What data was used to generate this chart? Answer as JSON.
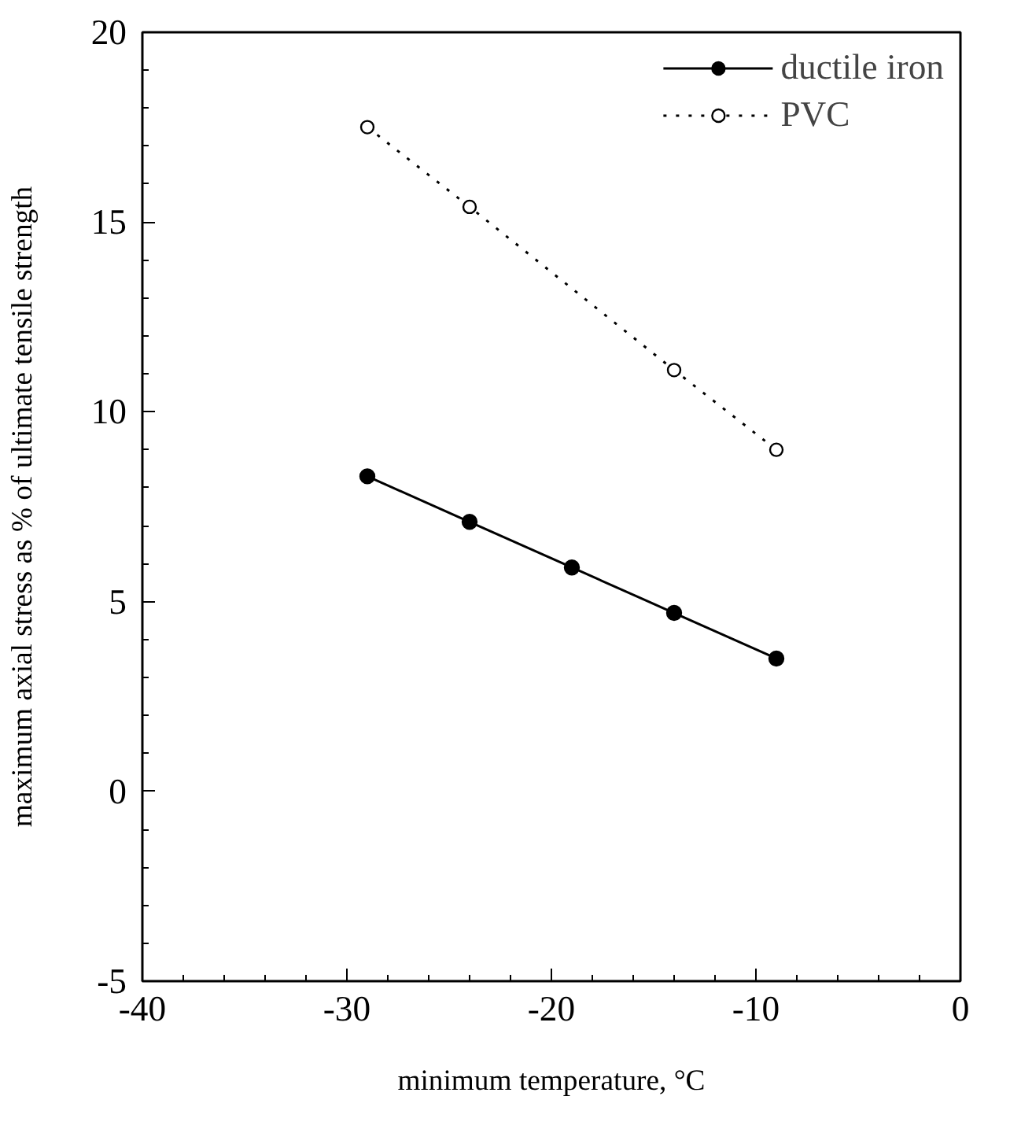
{
  "chart_data": {
    "type": "line",
    "xlabel": "minimum temperature, °C",
    "ylabel": "maximum axial stress as % of ultimate tensile strength",
    "xlim": [
      -40,
      0
    ],
    "ylim": [
      -5,
      20
    ],
    "xticks": [
      -40,
      -30,
      -20,
      -10,
      0
    ],
    "yticks": [
      -5,
      0,
      5,
      10,
      15,
      20
    ],
    "grid": false,
    "legend": "top right",
    "series": [
      {
        "name": "ductile iron",
        "color": "#000000",
        "x": [
          -29,
          -24,
          -19,
          -14,
          -9
        ],
        "values": [
          8.3,
          7.1,
          5.9,
          4.7,
          3.5
        ],
        "marker": "circle",
        "line_style": "solid"
      },
      {
        "name": "PVC",
        "color": "#000000",
        "x": [
          -29,
          -24,
          -14,
          -9
        ],
        "values": [
          17.5,
          15.4,
          11.1,
          9.0
        ],
        "marker": "circle",
        "line_style": "dotted"
      }
    ]
  }
}
